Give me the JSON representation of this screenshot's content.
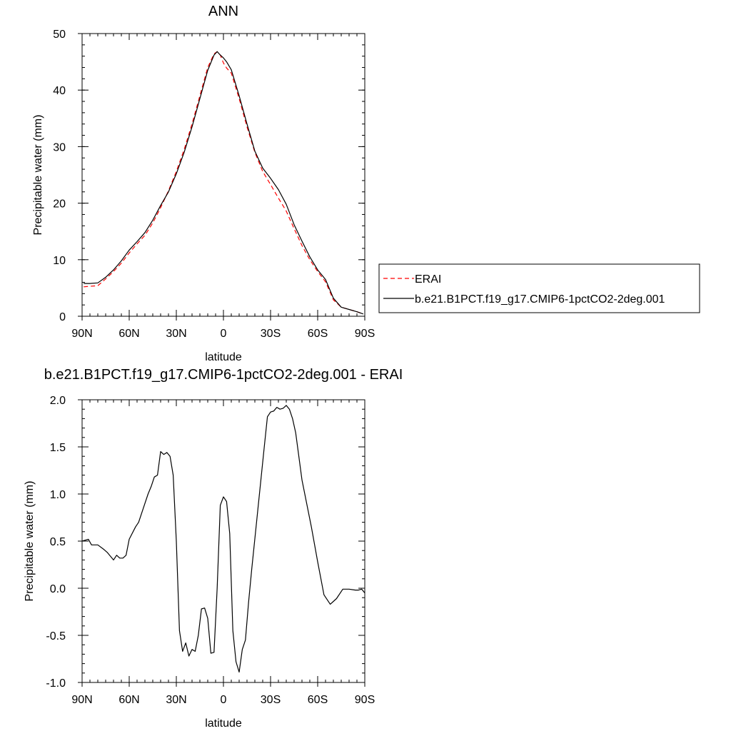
{
  "chart_data": [
    {
      "type": "line",
      "title": "ANN",
      "xlabel": "latitude",
      "ylabel": "Precipitable water (mm)",
      "xlim": [
        90,
        -90
      ],
      "ylim": [
        0,
        50
      ],
      "x_ticks": [
        90,
        60,
        30,
        0,
        -30,
        -60,
        -90
      ],
      "x_tick_labels": [
        "90N",
        "60N",
        "30N",
        "0",
        "30S",
        "60S",
        "90S"
      ],
      "y_ticks": [
        0,
        10,
        20,
        30,
        40,
        50
      ],
      "y_tick_labels": [
        "0",
        "10",
        "20",
        "30",
        "40",
        "50"
      ],
      "grid": false,
      "legend_position": "right",
      "series": [
        {
          "name": "ERAI",
          "color": "#ff0000",
          "dash": "dashed",
          "x": [
            89,
            85,
            80,
            75,
            70,
            65,
            60,
            55,
            50,
            45,
            40,
            35,
            30,
            25,
            20,
            15,
            10,
            6,
            4,
            2,
            0,
            -2,
            -5,
            -10,
            -15,
            -20,
            -25,
            -30,
            -35,
            -40,
            -45,
            -50,
            -55,
            -60,
            -65,
            -70,
            -75,
            -80,
            -85,
            -89
          ],
          "y": [
            5.2,
            5.3,
            5.4,
            6.6,
            7.9,
            9.4,
            11.2,
            12.8,
            14.3,
            16.5,
            19.2,
            22.2,
            25.6,
            29.5,
            34.0,
            39.0,
            44.0,
            46.4,
            46.8,
            46.2,
            44.8,
            43.9,
            43.0,
            38.5,
            33.5,
            29.0,
            25.6,
            23.3,
            20.9,
            18.6,
            15.5,
            12.5,
            10.0,
            7.9,
            6.1,
            2.9,
            1.6,
            1.2,
            0.8,
            0.4
          ]
        },
        {
          "name": "b.e21.B1PCT.f19_g17.CMIP6-1pctCO2-2deg.001",
          "color": "#000000",
          "dash": "solid",
          "x": [
            89,
            85,
            80,
            75,
            70,
            65,
            60,
            55,
            50,
            45,
            40,
            35,
            30,
            25,
            20,
            15,
            10,
            6,
            4,
            2,
            0,
            -2,
            -5,
            -10,
            -15,
            -20,
            -25,
            -30,
            -35,
            -40,
            -45,
            -50,
            -55,
            -60,
            -65,
            -70,
            -75,
            -80,
            -85,
            -89
          ],
          "y": [
            5.8,
            5.8,
            5.9,
            6.9,
            8.2,
            9.8,
            11.7,
            13.2,
            14.8,
            17.0,
            19.6,
            22.0,
            25.2,
            29.0,
            33.5,
            38.5,
            43.5,
            46.2,
            46.8,
            46.2,
            45.7,
            45.0,
            43.6,
            39.0,
            34.0,
            29.2,
            26.2,
            24.4,
            22.4,
            19.8,
            16.2,
            13.3,
            10.5,
            8.2,
            6.5,
            3.2,
            1.6,
            1.2,
            0.8,
            0.4
          ]
        }
      ]
    },
    {
      "type": "line",
      "title": "b.e21.B1PCT.f19_g17.CMIP6-1pctCO2-2deg.001 - ERAI",
      "xlabel": "latitude",
      "ylabel": "Precipitable water (mm)",
      "xlim": [
        90,
        -90
      ],
      "ylim": [
        -1.0,
        2.0
      ],
      "x_ticks": [
        90,
        60,
        30,
        0,
        -30,
        -60,
        -90
      ],
      "x_tick_labels": [
        "90N",
        "60N",
        "30N",
        "0",
        "30S",
        "60S",
        "90S"
      ],
      "y_ticks": [
        -1.0,
        -0.5,
        0.0,
        0.5,
        1.0,
        1.5,
        2.0
      ],
      "y_tick_labels": [
        "-1.0",
        "-0.5",
        "0.0",
        "0.5",
        "1.0",
        "1.5",
        "2.0"
      ],
      "grid": false,
      "series": [
        {
          "color": "#000000",
          "dash": "solid",
          "x": [
            90,
            86,
            84,
            80,
            76,
            74,
            70,
            68,
            66,
            64,
            62,
            60,
            56,
            54,
            50,
            48,
            46,
            44,
            42,
            40,
            38,
            36,
            34,
            32,
            30,
            28,
            26,
            24,
            22,
            20,
            18,
            16,
            14,
            12,
            10,
            8,
            6,
            4,
            2,
            0,
            -2,
            -4,
            -6,
            -8,
            -10,
            -12,
            -14,
            -16,
            -18,
            -22,
            -26,
            -28,
            -30,
            -32,
            -34,
            -36,
            -38,
            -40,
            -42,
            -44,
            -46,
            -50,
            -56,
            -60,
            -64,
            -66,
            -68,
            -70,
            -72,
            -76,
            -78,
            -80,
            -84,
            -86,
            -88,
            -90
          ],
          "y": [
            0.5,
            0.52,
            0.46,
            0.46,
            0.41,
            0.38,
            0.3,
            0.35,
            0.32,
            0.32,
            0.35,
            0.52,
            0.65,
            0.7,
            0.9,
            1.0,
            1.08,
            1.18,
            1.2,
            1.45,
            1.42,
            1.44,
            1.4,
            1.2,
            0.5,
            -0.45,
            -0.67,
            -0.58,
            -0.72,
            -0.65,
            -0.67,
            -0.5,
            -0.22,
            -0.21,
            -0.32,
            -0.69,
            -0.68,
            0.0,
            0.88,
            0.97,
            0.92,
            0.58,
            -0.45,
            -0.78,
            -0.89,
            -0.65,
            -0.55,
            -0.15,
            0.2,
            0.85,
            1.5,
            1.82,
            1.87,
            1.88,
            1.92,
            1.9,
            1.91,
            1.94,
            1.9,
            1.8,
            1.65,
            1.15,
            0.65,
            0.28,
            -0.07,
            -0.12,
            -0.17,
            -0.14,
            -0.11,
            -0.01,
            -0.01,
            -0.01,
            -0.02,
            -0.02,
            -0.01,
            -0.05
          ]
        }
      ]
    }
  ]
}
